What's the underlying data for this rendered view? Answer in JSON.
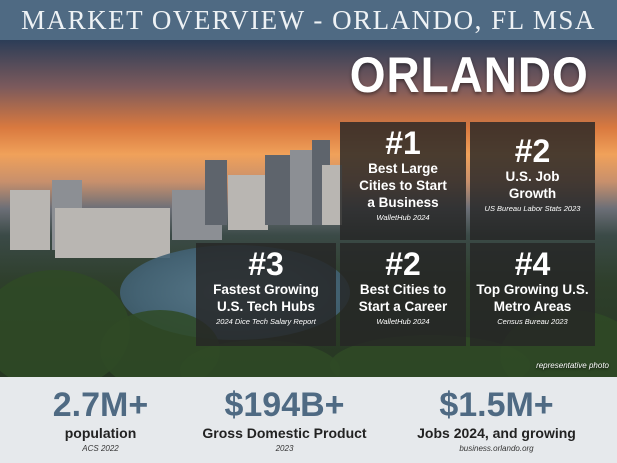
{
  "header": {
    "title": "MARKET OVERVIEW - ORLANDO, FL MSA"
  },
  "hero": {
    "city_name": "ORLANDO",
    "photo_note": "representative photo"
  },
  "rankings": [
    {
      "rank": "#1",
      "label_line1": "Best Large",
      "label_line2": "Cities to Start",
      "label_line3": "a Business",
      "source": "WalletHub 2024"
    },
    {
      "rank": "#2",
      "label_line1": "U.S. Job",
      "label_line2": "Growth",
      "label_line3": "",
      "source": "US Bureau Labor Stats 2023"
    },
    {
      "rank": "#3",
      "label_line1": "Fastest Growing",
      "label_line2": "U.S. Tech Hubs",
      "label_line3": "",
      "source": "2024 Dice Tech Salary Report"
    },
    {
      "rank": "#2",
      "label_line1": "Best Cities to",
      "label_line2": "Start a Career",
      "label_line3": "",
      "source": "WalletHub 2024"
    },
    {
      "rank": "#4",
      "label_line1": "Top Growing U.S.",
      "label_line2": "Metro Areas",
      "label_line3": "",
      "source": "Census Bureau 2023"
    }
  ],
  "stats": [
    {
      "value": "2.7M+",
      "label": "population",
      "source": "ACS 2022"
    },
    {
      "value": "$194B+",
      "label": "Gross Domestic Product",
      "source": "2023"
    },
    {
      "value": "$1.5M+",
      "label": "Jobs 2024, and growing",
      "source": "business.orlando.org"
    }
  ],
  "colors": {
    "header_bg": "#4f6a83",
    "stat_value": "#4f6a83",
    "stats_bg": "#e6e9ec",
    "rank_box_bg": "#262626"
  }
}
